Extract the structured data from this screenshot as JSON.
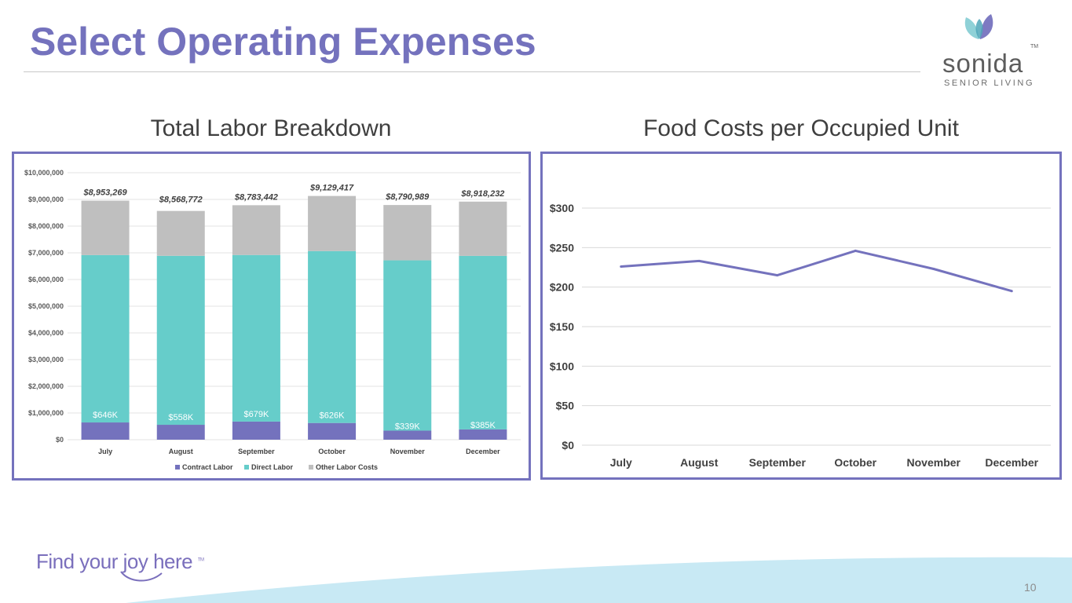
{
  "slide": {
    "title": "Select Operating Expenses",
    "page_number": "10",
    "tagline": "Find your joy here",
    "tagline_tm": "TM"
  },
  "logo": {
    "name": "sonida",
    "tm": "TM",
    "subtitle": "SENIOR LIVING",
    "colors": {
      "left_leaf": "#8fd1d7",
      "right_leaf": "#7d7ac2",
      "text": "#5d5d5d"
    }
  },
  "colors": {
    "title": "#7472bd",
    "frame": "#7472bd",
    "contract": "#7472bd",
    "direct": "#66cdca",
    "other": "#bfbfbf",
    "line": "#7472bd",
    "wave": "#c8e9f4"
  },
  "charts": {
    "labor": {
      "title": "Total Labor Breakdown"
    },
    "food": {
      "title": "Food Costs per Occupied Unit"
    }
  },
  "chart_data": [
    {
      "type": "bar",
      "stacked": true,
      "title": "Total Labor Breakdown",
      "categories": [
        "July",
        "August",
        "September",
        "October",
        "November",
        "December"
      ],
      "series": [
        {
          "name": "Contract Labor",
          "values": [
            646000,
            558000,
            679000,
            626000,
            339000,
            385000
          ],
          "labels": [
            "$646K",
            "$558K",
            "$679K",
            "$626K",
            "$339K",
            "$385K"
          ]
        },
        {
          "name": "Direct Labor",
          "values": [
            6270000,
            6330000,
            6240000,
            6440000,
            6380000,
            6500000
          ]
        },
        {
          "name": "Other Labor Costs",
          "values": [
            2037269,
            1680772,
            1864442,
            2063417,
            2071989,
            2033232
          ]
        }
      ],
      "totals": [
        8953269,
        8568772,
        8783442,
        9129417,
        8790989,
        8918232
      ],
      "total_labels": [
        "$8,953,269",
        "$8,568,772",
        "$8,783,442",
        "$9,129,417",
        "$8,790,989",
        "$8,918,232"
      ],
      "ylim": [
        0,
        10000000
      ],
      "yticks": [
        0,
        1000000,
        2000000,
        3000000,
        4000000,
        5000000,
        6000000,
        7000000,
        8000000,
        9000000,
        10000000
      ],
      "ytick_labels": [
        "$0",
        "$1,000,000",
        "$2,000,000",
        "$3,000,000",
        "$4,000,000",
        "$5,000,000",
        "$6,000,000",
        "$7,000,000",
        "$8,000,000",
        "$9,000,000",
        "$10,000,000"
      ],
      "grid": true,
      "legend": "bottom"
    },
    {
      "type": "line",
      "title": "Food Costs per Occupied Unit",
      "categories": [
        "July",
        "August",
        "September",
        "October",
        "November",
        "December"
      ],
      "series": [
        {
          "name": "Food Cost per Occupied Unit",
          "values": [
            226,
            233,
            215,
            246,
            223,
            195
          ]
        }
      ],
      "ylim": [
        0,
        300
      ],
      "yticks": [
        0,
        50,
        100,
        150,
        200,
        250,
        300
      ],
      "ytick_labels": [
        "$0",
        "$50",
        "$100",
        "$150",
        "$200",
        "$250",
        "$300"
      ],
      "grid": true,
      "legend": "none"
    }
  ]
}
